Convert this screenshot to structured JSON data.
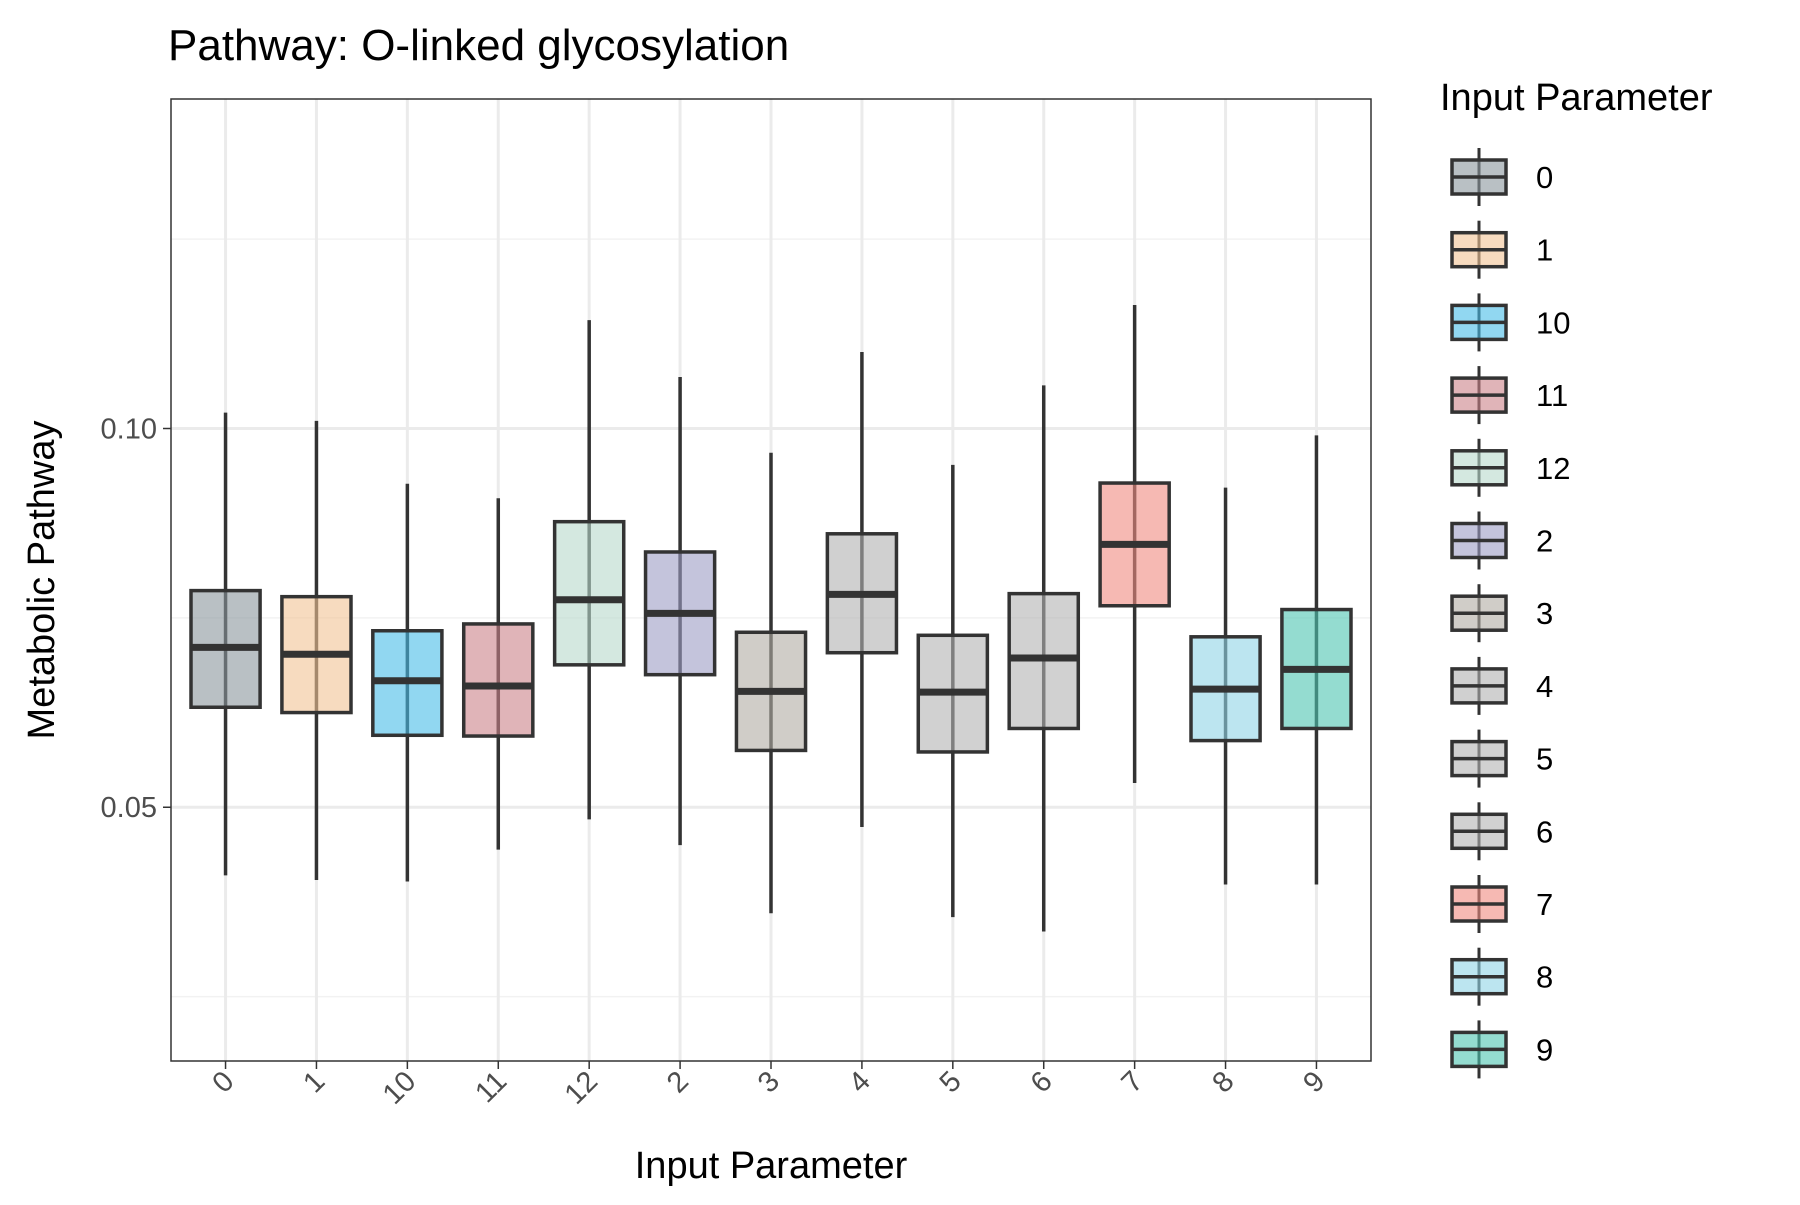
{
  "colors": {
    "background": "#ffffff",
    "panel_border": "#333333",
    "grid_major": "#ebebeb",
    "grid_minor": "#f2f2f2",
    "box_stroke": "#333333",
    "tick_text": "#4d4d4d",
    "text": "#000000"
  },
  "chart_data": {
    "type": "box",
    "title": "Pathway: O-linked glycosylation",
    "xlabel": "Input Parameter",
    "ylabel": "Metabolic Pathway",
    "ylim": [
      0.0165,
      0.1435
    ],
    "y_ticks": [
      0.05,
      0.1
    ],
    "y_tick_labels": [
      "0.05",
      "0.10"
    ],
    "y_minor_gridlines": [
      0.025,
      0.075,
      0.125
    ],
    "grid": true,
    "legend": {
      "title": "Input Parameter",
      "position": "right"
    },
    "categories": [
      "0",
      "1",
      "10",
      "11",
      "12",
      "2",
      "3",
      "4",
      "5",
      "6",
      "7",
      "8",
      "9"
    ],
    "series": [
      {
        "category": "0",
        "whisker_low": 0.041,
        "q1": 0.0632,
        "median": 0.0711,
        "q3": 0.0786,
        "whisker_high": 0.1021,
        "color": "#8a969c"
      },
      {
        "category": "1",
        "whisker_low": 0.0404,
        "q1": 0.0625,
        "median": 0.0702,
        "q3": 0.0778,
        "whisker_high": 0.101,
        "color": "#f2c394"
      },
      {
        "category": "10",
        "whisker_low": 0.0402,
        "q1": 0.0595,
        "median": 0.0667,
        "q3": 0.0733,
        "whisker_high": 0.0927,
        "color": "#48bde8"
      },
      {
        "category": "11",
        "whisker_low": 0.0444,
        "q1": 0.0594,
        "median": 0.066,
        "q3": 0.0742,
        "whisker_high": 0.0908,
        "color": "#cc8288"
      },
      {
        "category": "12",
        "whisker_low": 0.0484,
        "q1": 0.0688,
        "median": 0.0774,
        "q3": 0.0877,
        "whisker_high": 0.1143,
        "color": "#b8d9cb"
      },
      {
        "category": "2",
        "whisker_low": 0.045,
        "q1": 0.0675,
        "median": 0.0756,
        "q3": 0.0837,
        "whisker_high": 0.1068,
        "color": "#9c9cc4"
      },
      {
        "category": "3",
        "whisker_low": 0.036,
        "q1": 0.0575,
        "median": 0.0653,
        "q3": 0.0731,
        "whisker_high": 0.0968,
        "color": "#b0aca4"
      },
      {
        "category": "4",
        "whisker_low": 0.0474,
        "q1": 0.0704,
        "median": 0.0781,
        "q3": 0.0861,
        "whisker_high": 0.1101,
        "color": "#b0b0b0"
      },
      {
        "category": "5",
        "whisker_low": 0.0355,
        "q1": 0.0573,
        "median": 0.0652,
        "q3": 0.0727,
        "whisker_high": 0.0952,
        "color": "#b3b3b3"
      },
      {
        "category": "6",
        "whisker_low": 0.0336,
        "q1": 0.0604,
        "median": 0.0697,
        "q3": 0.0782,
        "whisker_high": 0.1057,
        "color": "#b3b3b3"
      },
      {
        "category": "7",
        "whisker_low": 0.0532,
        "q1": 0.0766,
        "median": 0.0847,
        "q3": 0.0928,
        "whisker_high": 0.1163,
        "color": "#f08a80"
      },
      {
        "category": "8",
        "whisker_low": 0.0398,
        "q1": 0.0588,
        "median": 0.0656,
        "q3": 0.0725,
        "whisker_high": 0.0922,
        "color": "#8fd3e6"
      },
      {
        "category": "9",
        "whisker_low": 0.0398,
        "q1": 0.0604,
        "median": 0.0682,
        "q3": 0.0761,
        "whisker_high": 0.0991,
        "color": "#4dc4b0"
      }
    ]
  }
}
